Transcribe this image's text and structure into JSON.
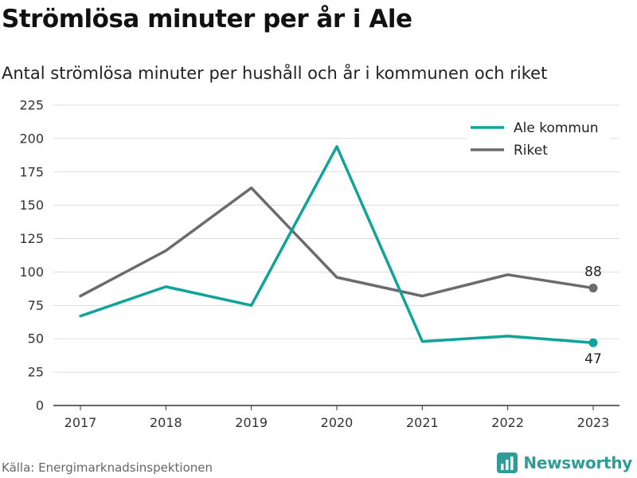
{
  "header": {
    "title": "Strömlösa minuter per år i Ale",
    "subtitle": "Antal strömlösa minuter per hushåll och år i kommunen och riket"
  },
  "footer": {
    "source": "Källa: Energimarknadsinspektionen",
    "brand": "Newsworthy",
    "brand_icon": "bar-chart-logo-icon"
  },
  "colors": {
    "ale": "#0fa39a",
    "riket": "#6b6b6e",
    "brand": "#2f9c97",
    "grid": "#dddddd",
    "axis": "#333333"
  },
  "chart_data": {
    "type": "line",
    "title": "Strömlösa minuter per år i Ale",
    "subtitle": "Antal strömlösa minuter per hushåll och år i kommunen och riket",
    "x": [
      "2017",
      "2018",
      "2019",
      "2020",
      "2021",
      "2022",
      "2023"
    ],
    "ylim": [
      0,
      225
    ],
    "yticks": [
      0,
      25,
      50,
      75,
      100,
      125,
      150,
      175,
      200,
      225
    ],
    "grid": true,
    "legend_position": "top-right",
    "series": [
      {
        "key": "ale",
        "name": "Ale kommun",
        "color": "#0fa39a",
        "values": [
          67,
          89,
          75,
          194,
          48,
          52,
          47
        ],
        "end_label": "47",
        "end_label_position": "below"
      },
      {
        "key": "riket",
        "name": "Riket",
        "color": "#6b6b6e",
        "values": [
          82,
          116,
          163,
          96,
          82,
          98,
          88
        ],
        "end_label": "88",
        "end_label_position": "above"
      }
    ]
  }
}
